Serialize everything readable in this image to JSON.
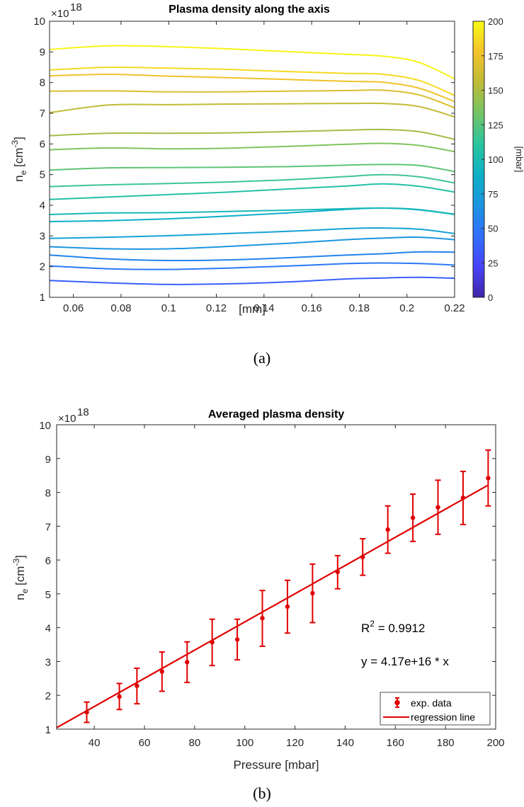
{
  "chart_data": [
    {
      "type": "line",
      "title": "Plasma density along the axis",
      "xlabel": "[mm]",
      "ylabel_base": "n",
      "ylabel_sub": "e",
      "ylabel_unit_pre": " [cm",
      "ylabel_unit_sup": "-3",
      "ylabel_unit_post": "]",
      "exponent_base": "×10",
      "exponent_power": "18",
      "xlim": [
        0.05,
        0.22
      ],
      "ylim": [
        1,
        10
      ],
      "x_tick_labels": [
        "0.06",
        "0.08",
        "0.1",
        "0.12",
        "0.14",
        "0.16",
        "0.18",
        "0.2",
        "0.22"
      ],
      "x_tick_values": [
        0.06,
        0.08,
        0.1,
        0.12,
        0.14,
        0.16,
        0.18,
        0.2,
        0.22
      ],
      "y_tick_labels": [
        "1",
        "2",
        "3",
        "4",
        "5",
        "6",
        "7",
        "8",
        "9",
        "10"
      ],
      "y_tick_values": [
        1,
        2,
        3,
        4,
        5,
        6,
        7,
        8,
        9,
        10
      ],
      "colorbar": {
        "label": "[mbar]",
        "range": [
          0,
          200
        ],
        "tick_labels": [
          "0",
          "25",
          "50",
          "75",
          "100",
          "125",
          "150",
          "175",
          "200"
        ],
        "tick_values": [
          0,
          25,
          50,
          75,
          100,
          125,
          150,
          175,
          200
        ],
        "colormap": "parula",
        "colors": [
          "#3e26a8",
          "#4743f8",
          "#2f6ffd",
          "#1c95e0",
          "#0cb1c6",
          "#2ac59f",
          "#74c465",
          "#bfbb38",
          "#f3c22b",
          "#f9fb15"
        ]
      },
      "grid": false,
      "x": [
        0.05,
        0.075,
        0.1,
        0.125,
        0.15,
        0.175,
        0.19,
        0.205,
        0.22
      ],
      "series": [
        {
          "pressure": 37,
          "values": [
            1.55,
            1.47,
            1.42,
            1.44,
            1.5,
            1.6,
            1.63,
            1.65,
            1.62
          ]
        },
        {
          "pressure": 50,
          "values": [
            2.02,
            1.93,
            1.91,
            1.95,
            2.02,
            2.1,
            2.12,
            2.1,
            2.05
          ]
        },
        {
          "pressure": 57,
          "values": [
            2.38,
            2.25,
            2.2,
            2.22,
            2.29,
            2.38,
            2.42,
            2.48,
            2.47
          ]
        },
        {
          "pressure": 67,
          "values": [
            2.65,
            2.58,
            2.58,
            2.66,
            2.76,
            2.88,
            2.93,
            2.96,
            2.88
          ]
        },
        {
          "pressure": 77,
          "values": [
            2.92,
            2.96,
            3.01,
            3.08,
            3.15,
            3.24,
            3.26,
            3.22,
            3.08
          ]
        },
        {
          "pressure": 87,
          "values": [
            3.47,
            3.5,
            3.56,
            3.65,
            3.75,
            3.87,
            3.91,
            3.86,
            3.71
          ]
        },
        {
          "pressure": 97,
          "values": [
            3.7,
            3.75,
            3.76,
            3.8,
            3.84,
            3.89,
            3.91,
            3.85,
            3.7
          ]
        },
        {
          "pressure": 107,
          "values": [
            4.19,
            4.27,
            4.35,
            4.43,
            4.53,
            4.63,
            4.7,
            4.62,
            4.43
          ]
        },
        {
          "pressure": 117,
          "values": [
            4.61,
            4.67,
            4.71,
            4.76,
            4.83,
            4.94,
            5.0,
            4.93,
            4.73
          ]
        },
        {
          "pressure": 127,
          "values": [
            5.15,
            5.22,
            5.23,
            5.24,
            5.26,
            5.31,
            5.33,
            5.3,
            5.1
          ]
        },
        {
          "pressure": 137,
          "values": [
            5.81,
            5.87,
            5.84,
            5.86,
            5.92,
            5.99,
            6.02,
            5.95,
            5.75
          ]
        },
        {
          "pressure": 147,
          "values": [
            6.27,
            6.35,
            6.35,
            6.36,
            6.4,
            6.45,
            6.47,
            6.4,
            6.15
          ]
        },
        {
          "pressure": 157,
          "values": [
            7.02,
            7.27,
            7.28,
            7.3,
            7.31,
            7.32,
            7.32,
            7.22,
            6.88
          ]
        },
        {
          "pressure": 167,
          "values": [
            7.72,
            7.73,
            7.7,
            7.7,
            7.72,
            7.74,
            7.75,
            7.6,
            7.18
          ]
        },
        {
          "pressure": 177,
          "values": [
            8.22,
            8.27,
            8.21,
            8.16,
            8.1,
            8.04,
            8.01,
            7.82,
            7.38
          ]
        },
        {
          "pressure": 187,
          "values": [
            8.41,
            8.5,
            8.47,
            8.43,
            8.36,
            8.3,
            8.27,
            8.07,
            7.58
          ]
        },
        {
          "pressure": 197,
          "values": [
            9.08,
            9.2,
            9.17,
            9.1,
            9.01,
            8.92,
            8.86,
            8.66,
            8.12
          ]
        }
      ]
    },
    {
      "type": "scatter",
      "title": "Averaged plasma density",
      "xlabel": "Pressure [mbar]",
      "ylabel_base": "n",
      "ylabel_sub": "e",
      "ylabel_unit_pre": " [cm",
      "ylabel_unit_sup": "-3",
      "ylabel_unit_post": "]",
      "exponent_base": "×10",
      "exponent_power": "18",
      "xlim": [
        25,
        200
      ],
      "ylim": [
        1,
        10
      ],
      "x_tick_labels": [
        "40",
        "60",
        "80",
        "100",
        "120",
        "140",
        "160",
        "180",
        "200"
      ],
      "x_tick_values": [
        40,
        60,
        80,
        100,
        120,
        140,
        160,
        180,
        200
      ],
      "y_tick_labels": [
        "1",
        "2",
        "3",
        "4",
        "5",
        "6",
        "7",
        "8",
        "9",
        "10"
      ],
      "y_tick_values": [
        1,
        2,
        3,
        4,
        5,
        6,
        7,
        8,
        9,
        10
      ],
      "grid": false,
      "color": "#e00000",
      "data_points": [
        {
          "x": 37,
          "y": 1.5,
          "lo": 1.2,
          "hi": 1.8
        },
        {
          "x": 50,
          "y": 1.96,
          "lo": 1.58,
          "hi": 2.35
        },
        {
          "x": 57,
          "y": 2.28,
          "lo": 1.75,
          "hi": 2.8
        },
        {
          "x": 67,
          "y": 2.7,
          "lo": 2.12,
          "hi": 3.28
        },
        {
          "x": 77,
          "y": 2.98,
          "lo": 2.38,
          "hi": 3.58
        },
        {
          "x": 87,
          "y": 3.57,
          "lo": 2.88,
          "hi": 4.25
        },
        {
          "x": 97,
          "y": 3.65,
          "lo": 3.05,
          "hi": 4.25
        },
        {
          "x": 107,
          "y": 4.28,
          "lo": 3.45,
          "hi": 5.1
        },
        {
          "x": 117,
          "y": 4.62,
          "lo": 3.84,
          "hi": 5.4
        },
        {
          "x": 127,
          "y": 5.02,
          "lo": 4.15,
          "hi": 5.88
        },
        {
          "x": 137,
          "y": 5.65,
          "lo": 5.15,
          "hi": 6.13
        },
        {
          "x": 147,
          "y": 6.09,
          "lo": 5.55,
          "hi": 6.63
        },
        {
          "x": 157,
          "y": 6.9,
          "lo": 6.2,
          "hi": 7.6
        },
        {
          "x": 167,
          "y": 7.25,
          "lo": 6.55,
          "hi": 7.95
        },
        {
          "x": 177,
          "y": 7.56,
          "lo": 6.76,
          "hi": 8.36
        },
        {
          "x": 187,
          "y": 7.84,
          "lo": 7.05,
          "hi": 8.62
        },
        {
          "x": 197,
          "y": 8.42,
          "lo": 7.6,
          "hi": 9.25
        }
      ],
      "regression_line": {
        "slope": 0.0417,
        "x_range": [
          25,
          197
        ]
      },
      "annotation_r2_pre": "R",
      "annotation_r2_sup": "2",
      "annotation_r2_post": " = 0.9912",
      "annotation_fit": "y = 4.17e+16 * x",
      "legend": {
        "position": "bottom-right",
        "entries": [
          "exp. data",
          "regression line"
        ]
      }
    }
  ],
  "captions": [
    "(a)",
    "(b)"
  ]
}
